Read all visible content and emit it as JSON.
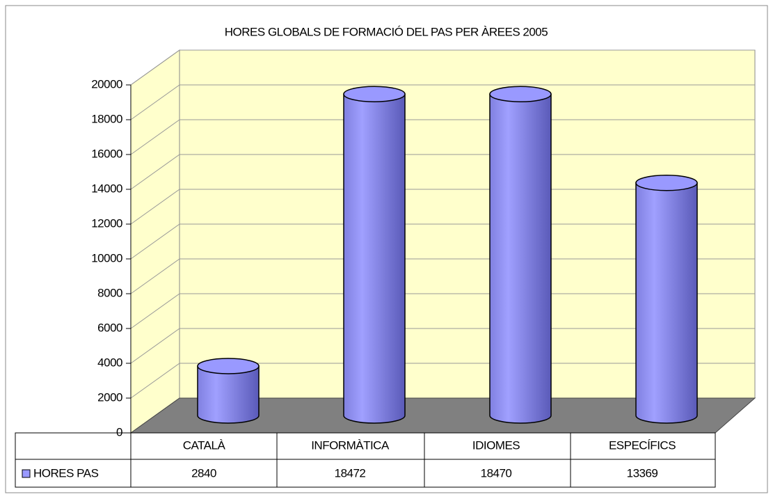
{
  "chart_data": {
    "type": "bar",
    "title": "HORES  GLOBALS DE FORMACIÓ DEL PAS  PER ÀREES 2005",
    "categories": [
      "CATALÀ",
      "INFORMÀTICA",
      "IDIOMES",
      "ESPECÍFICS"
    ],
    "series": [
      {
        "name": "HORES PAS",
        "color": "#9999ff",
        "values": [
          2840,
          18472,
          18470,
          13369
        ]
      }
    ],
    "ylim": [
      0,
      20000
    ],
    "yticks": [
      0,
      2000,
      4000,
      6000,
      8000,
      10000,
      12000,
      14000,
      16000,
      18000,
      20000
    ],
    "grid": true
  }
}
